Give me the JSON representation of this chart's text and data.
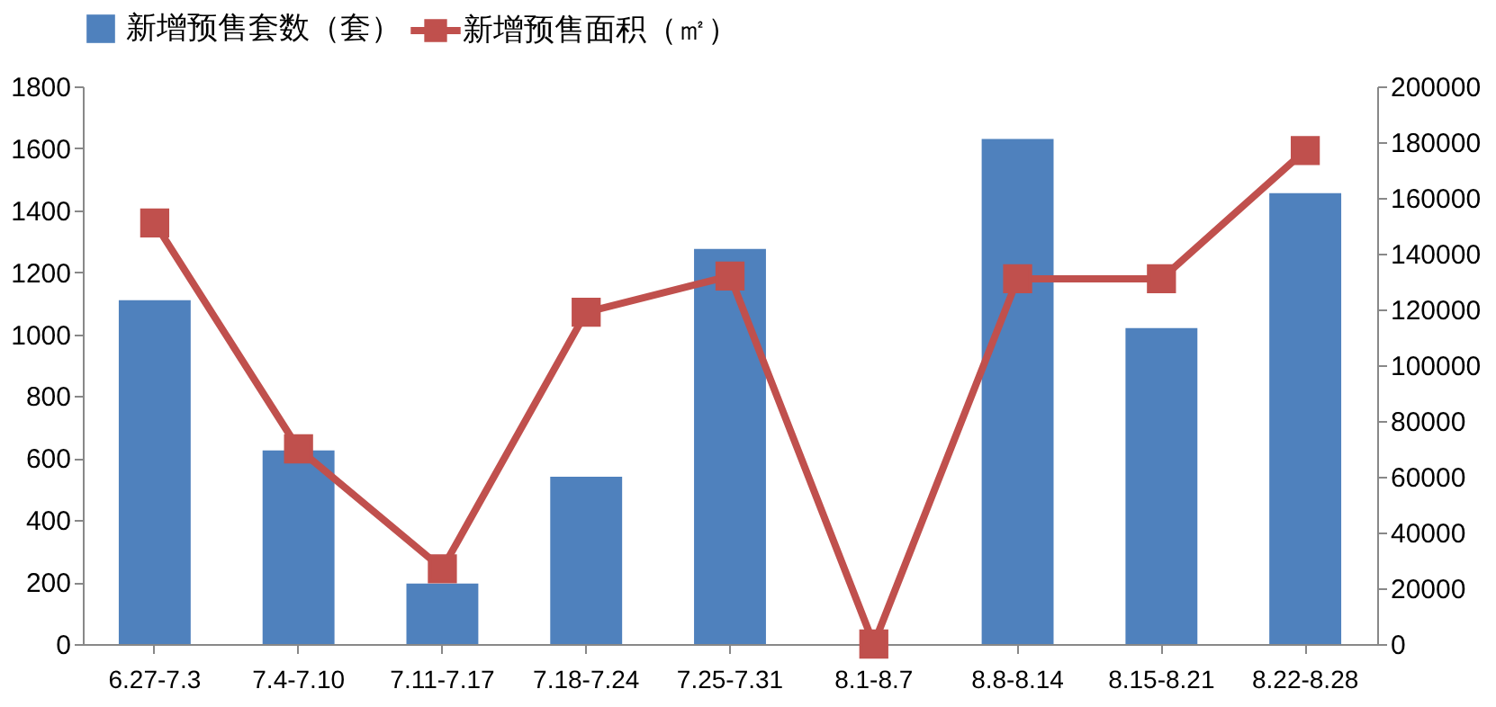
{
  "chart_data": {
    "type": "bar",
    "categories": [
      "6.27-7.3",
      "7.4-7.10",
      "7.11-7.17",
      "7.18-7.24",
      "7.25-7.31",
      "8.1-8.7",
      "8.8-8.14",
      "8.15-8.21",
      "8.22-8.28"
    ],
    "series": [
      {
        "name": "新增预售套数（套）",
        "color": "#4f81bd",
        "values": [
          1110,
          625,
          195,
          540,
          1275,
          0,
          1630,
          1020,
          1455
        ]
      },
      {
        "name": "新增预售面积（㎡）",
        "color": "#c0504d",
        "type": "line",
        "axis": "y2",
        "values": [
          151000,
          70000,
          27000,
          119000,
          132000,
          0,
          131000,
          131000,
          177000
        ]
      }
    ],
    "ylim": [
      0,
      1800
    ],
    "yticks": [
      0,
      200,
      400,
      600,
      800,
      1000,
      1200,
      1400,
      1600,
      1800
    ],
    "y2lim": [
      0,
      200000
    ],
    "y2ticks": [
      0,
      20000,
      40000,
      60000,
      80000,
      100000,
      120000,
      140000,
      160000,
      180000,
      200000
    ],
    "legend": "top",
    "marker": "square",
    "line_style": "solid",
    "grid": false
  }
}
